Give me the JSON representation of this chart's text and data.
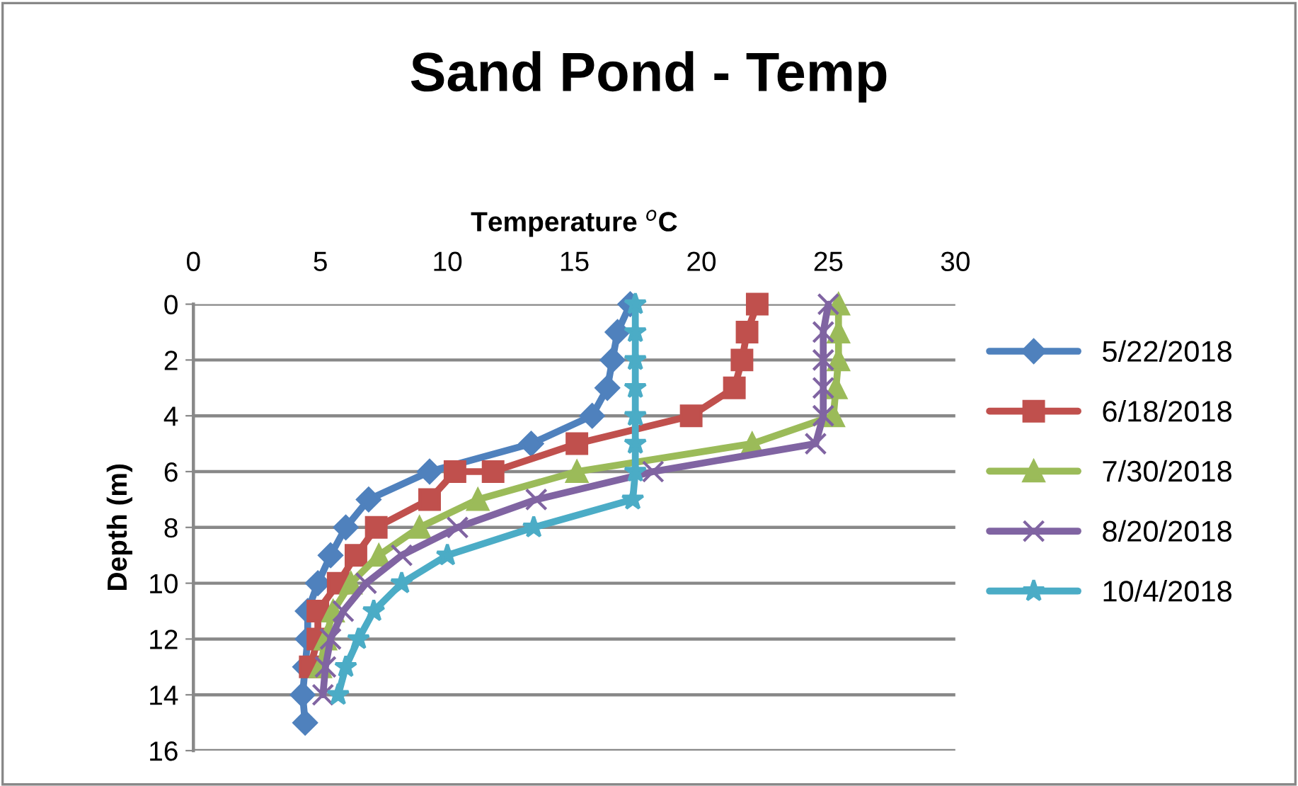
{
  "chart_data": {
    "type": "line",
    "title": "Sand Pond - Temp",
    "xlabel": "Temperature $^{o}$C",
    "ylabel": "Depth (m)",
    "xlim": [
      0,
      30
    ],
    "xticks": [
      0,
      5,
      10,
      15,
      20,
      25,
      30
    ],
    "ylim": [
      16,
      0
    ],
    "yticks": [
      0,
      2,
      4,
      6,
      8,
      10,
      12,
      14,
      16
    ],
    "grid": "y",
    "legend": "right",
    "series": [
      {
        "name": "5/22/2018",
        "color": "#4f81bd",
        "marker": "diamond",
        "x": [
          17.2,
          16.7,
          16.5,
          16.3,
          15.7,
          13.3,
          9.3,
          6.9,
          6.0,
          5.4,
          4.9,
          4.5,
          4.5,
          4.4,
          4.3,
          4.4
        ],
        "values": [
          0,
          1,
          2,
          3,
          4,
          5,
          6,
          7,
          8,
          9,
          10,
          11,
          12,
          13,
          14,
          15
        ]
      },
      {
        "name": "6/18/2018",
        "color": "#c0504d",
        "marker": "square",
        "x": [
          22.2,
          21.8,
          21.6,
          21.3,
          19.6,
          15.1,
          11.8,
          10.3,
          9.3,
          7.2,
          6.4,
          5.7,
          4.9,
          4.9,
          4.6
        ],
        "values": [
          0,
          1,
          2,
          3,
          4,
          5,
          6,
          6,
          7,
          8,
          9,
          10,
          11,
          12,
          13
        ]
      },
      {
        "name": "7/30/2018",
        "color": "#9bbb59",
        "marker": "triangle",
        "x": [
          25.4,
          25.4,
          25.4,
          25.3,
          25.2,
          22.0,
          15.1,
          11.2,
          8.9,
          7.3,
          6.2,
          5.5,
          5.2,
          5.0
        ],
        "values": [
          0,
          1,
          2,
          3,
          4,
          5,
          6,
          7,
          8,
          9,
          10,
          11,
          12,
          13
        ]
      },
      {
        "name": "8/20/2018",
        "color": "#8064a2",
        "marker": "cross",
        "x": [
          25.0,
          24.8,
          24.8,
          24.8,
          24.8,
          24.5,
          18.1,
          13.5,
          10.4,
          8.2,
          6.8,
          5.9,
          5.4,
          5.2,
          5.1
        ],
        "values": [
          0,
          1,
          2,
          3,
          4,
          5,
          6,
          7,
          8,
          9,
          10,
          11,
          12,
          13,
          14
        ]
      },
      {
        "name": "10/4/2018",
        "color": "#4bacc6",
        "marker": "star",
        "x": [
          17.4,
          17.4,
          17.4,
          17.4,
          17.4,
          17.4,
          17.4,
          17.3,
          13.4,
          10.0,
          8.2,
          7.1,
          6.5,
          6.0,
          5.7
        ],
        "values": [
          0,
          1,
          2,
          3,
          4,
          5,
          6,
          7,
          8,
          9,
          10,
          11,
          12,
          13,
          14
        ]
      }
    ]
  }
}
